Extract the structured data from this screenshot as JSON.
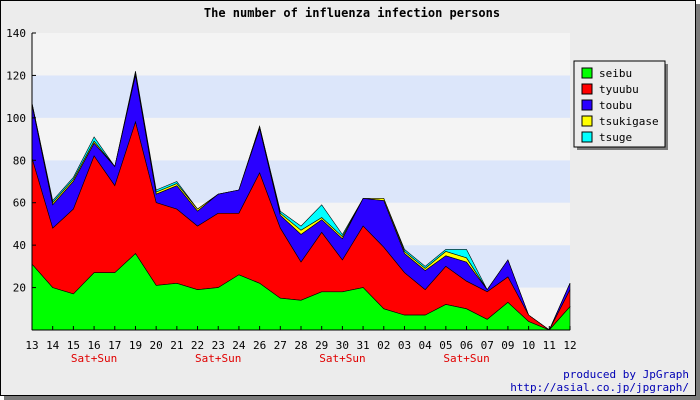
{
  "chart_data": {
    "type": "area",
    "title": "The number of influenza infection persons",
    "xlabel": "",
    "ylabel": "",
    "ylim": [
      0,
      140
    ],
    "yticks": [
      "20",
      "40",
      "60",
      "80",
      "100",
      "120",
      "140"
    ],
    "stacked": true,
    "grid": "horizontal alternating bands",
    "legend_position": "right",
    "categories": [
      "13",
      "14",
      "15",
      "16",
      "17",
      "19",
      "20",
      "21",
      "22",
      "23",
      "24",
      "26",
      "27",
      "28",
      "29",
      "30",
      "31",
      "02",
      "03",
      "04",
      "05",
      "06",
      "07",
      "09",
      "10",
      "11",
      "12"
    ],
    "weekend_label": "Sat+Sun",
    "weekend_categories": [
      "16",
      "23",
      "30",
      "06"
    ],
    "series": [
      {
        "name": "seibu",
        "color": "#00ff00",
        "values": [
          31,
          20,
          17,
          27,
          27,
          36,
          21,
          22,
          19,
          20,
          26,
          22,
          15,
          14,
          18,
          18,
          20,
          10,
          7,
          7,
          12,
          10,
          5,
          13,
          4,
          0,
          11
        ]
      },
      {
        "name": "tyuubu",
        "color": "#ff0000",
        "values": [
          50,
          28,
          40,
          55,
          41,
          62,
          39,
          35,
          30,
          35,
          29,
          52,
          33,
          18,
          28,
          15,
          29,
          29,
          20,
          12,
          18,
          13,
          13,
          12,
          3,
          0,
          8
        ]
      },
      {
        "name": "toubu",
        "color": "#2a00ff",
        "values": [
          25,
          11,
          13,
          6,
          9,
          22,
          4,
          11,
          7,
          9,
          11,
          21,
          6,
          13,
          6,
          10,
          13,
          22,
          9,
          9,
          5,
          9,
          1,
          8,
          0,
          0,
          3
        ]
      },
      {
        "name": "tsukigase",
        "color": "#ffff00",
        "values": [
          1,
          1,
          1,
          1,
          0,
          1,
          1,
          1,
          1,
          0,
          0,
          1,
          1,
          2,
          1,
          1,
          0,
          1,
          1,
          1,
          2,
          2,
          0,
          0,
          0,
          0,
          0
        ]
      },
      {
        "name": "tsuge",
        "color": "#00ffff",
        "values": [
          0,
          1,
          1,
          2,
          0,
          1,
          1,
          1,
          0,
          0,
          0,
          0,
          1,
          2,
          6,
          1,
          0,
          0,
          1,
          1,
          1,
          4,
          0,
          0,
          0,
          0,
          0
        ]
      }
    ]
  },
  "credits": {
    "line1": "produced by JpGraph",
    "line2": "http://asial.co.jp/jpgraph/"
  }
}
